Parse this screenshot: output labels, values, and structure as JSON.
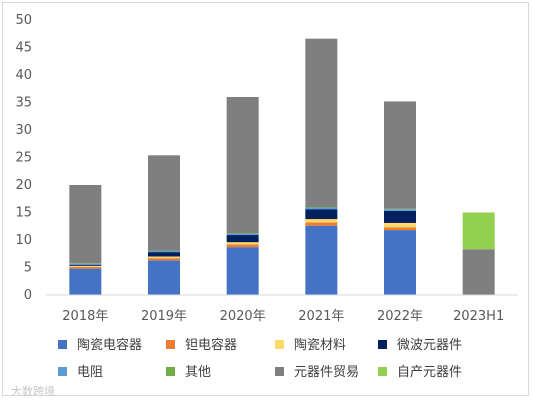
{
  "chart_data": {
    "type": "bar",
    "stacked": true,
    "categories": [
      "2018年",
      "2019年",
      "2020年",
      "2021年",
      "2022年",
      "2023H1"
    ],
    "ylim": [
      0,
      50
    ],
    "yticks": [
      0,
      5,
      10,
      15,
      20,
      25,
      30,
      35,
      40,
      45,
      50
    ],
    "grid": false,
    "legend_position": "bottom",
    "series": [
      {
        "name": "陶瓷电容器",
        "color": "#4472C4",
        "values": [
          4.8,
          6.3,
          8.7,
          12.6,
          11.8,
          0
        ]
      },
      {
        "name": "钽电容器",
        "color": "#ED7D31",
        "values": [
          0.3,
          0.4,
          0.5,
          0.6,
          0.5,
          0
        ]
      },
      {
        "name": "陶瓷材料",
        "color": "#FFD966",
        "values": [
          0.2,
          0.3,
          0.4,
          0.6,
          0.8,
          0
        ]
      },
      {
        "name": "微波元器件",
        "color": "#002060",
        "values": [
          0.2,
          0.8,
          1.3,
          1.8,
          2.2,
          0
        ]
      },
      {
        "name": "电阻",
        "color": "#5B9BD5",
        "values": [
          0.2,
          0.2,
          0.2,
          0.3,
          0.3,
          0
        ]
      },
      {
        "name": "其他",
        "color": "#70AD47",
        "values": [
          0.1,
          0.1,
          0.1,
          0.1,
          0.1,
          0
        ]
      },
      {
        "name": "元器件贸易",
        "color": "#7F7F7F",
        "values": [
          14.2,
          17.3,
          24.8,
          30.6,
          19.5,
          8.3
        ]
      },
      {
        "name": "自产元器件",
        "color": "#92D050",
        "values": [
          0,
          0,
          0,
          0,
          0,
          6.7
        ]
      }
    ]
  },
  "watermark": "大数跨境"
}
